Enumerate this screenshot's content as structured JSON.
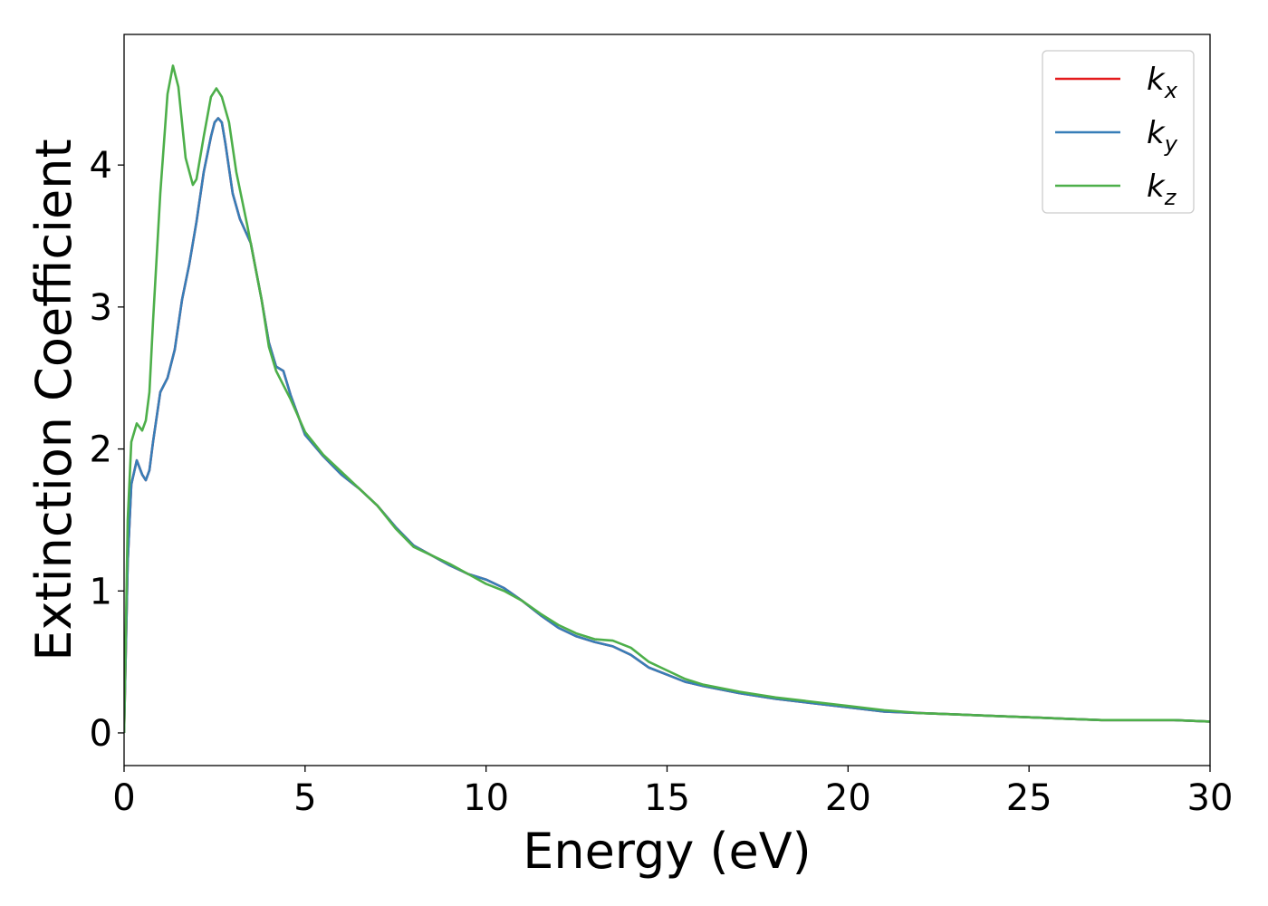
{
  "chart_data": {
    "type": "line",
    "title": "",
    "xlabel": "Energy (eV)",
    "ylabel": "Extinction Coefficient",
    "xlim": [
      0,
      30
    ],
    "ylim": [
      -0.23,
      4.92
    ],
    "xticks": [
      0,
      5,
      10,
      15,
      20,
      25,
      30
    ],
    "yticks": [
      0,
      1,
      2,
      3,
      4
    ],
    "grid": false,
    "legend_position": "top-right",
    "series": [
      {
        "name": "k_x",
        "label_main": "k",
        "label_sub": "x",
        "color": "#e41a1c",
        "x": [
          0,
          0.1,
          0.2,
          0.35,
          0.5,
          0.6,
          0.7,
          0.8,
          1.0,
          1.2,
          1.4,
          1.6,
          1.8,
          2.0,
          2.2,
          2.4,
          2.5,
          2.6,
          2.7,
          2.8,
          3.0,
          3.2,
          3.5,
          3.8,
          4.0,
          4.2,
          4.4,
          4.6,
          5.0,
          5.5,
          6.0,
          6.5,
          7.0,
          7.5,
          8.0,
          8.5,
          9.0,
          9.5,
          10.0,
          10.5,
          11.0,
          11.5,
          12.0,
          12.5,
          13.0,
          13.5,
          14.0,
          14.5,
          15.0,
          15.5,
          16.0,
          17.0,
          18.0,
          19.0,
          20.0,
          21.0,
          22.0,
          23.0,
          24.0,
          25.0,
          26.0,
          27.0,
          28.0,
          29.0,
          30.0
        ],
        "y": [
          0.0,
          1.2,
          1.75,
          1.92,
          1.82,
          1.78,
          1.85,
          2.05,
          2.4,
          2.5,
          2.7,
          3.05,
          3.3,
          3.6,
          3.95,
          4.2,
          4.3,
          4.33,
          4.3,
          4.15,
          3.8,
          3.62,
          3.45,
          3.05,
          2.75,
          2.58,
          2.55,
          2.38,
          2.1,
          1.95,
          1.82,
          1.72,
          1.6,
          1.45,
          1.32,
          1.25,
          1.18,
          1.12,
          1.08,
          1.02,
          0.93,
          0.83,
          0.74,
          0.68,
          0.64,
          0.61,
          0.55,
          0.46,
          0.41,
          0.36,
          0.33,
          0.28,
          0.24,
          0.21,
          0.18,
          0.15,
          0.14,
          0.13,
          0.12,
          0.11,
          0.1,
          0.09,
          0.09,
          0.09,
          0.08
        ]
      },
      {
        "name": "k_y",
        "label_main": "k",
        "label_sub": "y",
        "color": "#377eb8",
        "x": [
          0,
          0.1,
          0.2,
          0.35,
          0.5,
          0.6,
          0.7,
          0.8,
          1.0,
          1.2,
          1.4,
          1.6,
          1.8,
          2.0,
          2.2,
          2.4,
          2.5,
          2.6,
          2.7,
          2.8,
          3.0,
          3.2,
          3.5,
          3.8,
          4.0,
          4.2,
          4.4,
          4.6,
          5.0,
          5.5,
          6.0,
          6.5,
          7.0,
          7.5,
          8.0,
          8.5,
          9.0,
          9.5,
          10.0,
          10.5,
          11.0,
          11.5,
          12.0,
          12.5,
          13.0,
          13.5,
          14.0,
          14.5,
          15.0,
          15.5,
          16.0,
          17.0,
          18.0,
          19.0,
          20.0,
          21.0,
          22.0,
          23.0,
          24.0,
          25.0,
          26.0,
          27.0,
          28.0,
          29.0,
          30.0
        ],
        "y": [
          0.0,
          1.2,
          1.75,
          1.92,
          1.82,
          1.78,
          1.85,
          2.05,
          2.4,
          2.5,
          2.7,
          3.05,
          3.3,
          3.6,
          3.95,
          4.2,
          4.3,
          4.33,
          4.3,
          4.15,
          3.8,
          3.62,
          3.45,
          3.05,
          2.75,
          2.58,
          2.55,
          2.38,
          2.1,
          1.95,
          1.82,
          1.72,
          1.6,
          1.45,
          1.32,
          1.25,
          1.18,
          1.12,
          1.08,
          1.02,
          0.93,
          0.83,
          0.74,
          0.68,
          0.64,
          0.61,
          0.55,
          0.46,
          0.41,
          0.36,
          0.33,
          0.28,
          0.24,
          0.21,
          0.18,
          0.15,
          0.14,
          0.13,
          0.12,
          0.11,
          0.1,
          0.09,
          0.09,
          0.09,
          0.08
        ]
      },
      {
        "name": "k_z",
        "label_main": "k",
        "label_sub": "z",
        "color": "#4daf4a",
        "x": [
          0,
          0.1,
          0.2,
          0.35,
          0.5,
          0.6,
          0.7,
          0.8,
          1.0,
          1.2,
          1.35,
          1.5,
          1.7,
          1.9,
          2.0,
          2.2,
          2.4,
          2.55,
          2.7,
          2.9,
          3.1,
          3.4,
          3.8,
          4.0,
          4.2,
          4.4,
          4.6,
          5.0,
          5.5,
          6.0,
          6.5,
          7.0,
          7.5,
          8.0,
          8.5,
          9.0,
          9.5,
          10.0,
          10.5,
          11.0,
          11.5,
          12.0,
          12.5,
          13.0,
          13.5,
          14.0,
          14.5,
          15.0,
          15.5,
          16.0,
          17.0,
          18.0,
          19.0,
          20.0,
          21.0,
          22.0,
          23.0,
          24.0,
          25.0,
          26.0,
          27.0,
          28.0,
          29.0,
          30.0
        ],
        "y": [
          0.0,
          1.5,
          2.05,
          2.18,
          2.13,
          2.2,
          2.4,
          2.9,
          3.8,
          4.5,
          4.7,
          4.55,
          4.05,
          3.86,
          3.9,
          4.2,
          4.48,
          4.54,
          4.48,
          4.3,
          3.95,
          3.58,
          3.05,
          2.72,
          2.55,
          2.45,
          2.35,
          2.12,
          1.96,
          1.84,
          1.72,
          1.6,
          1.44,
          1.31,
          1.25,
          1.19,
          1.12,
          1.05,
          1.0,
          0.93,
          0.84,
          0.76,
          0.7,
          0.66,
          0.65,
          0.6,
          0.5,
          0.44,
          0.38,
          0.34,
          0.29,
          0.25,
          0.22,
          0.19,
          0.16,
          0.14,
          0.13,
          0.12,
          0.11,
          0.1,
          0.09,
          0.09,
          0.09,
          0.08
        ]
      }
    ]
  }
}
